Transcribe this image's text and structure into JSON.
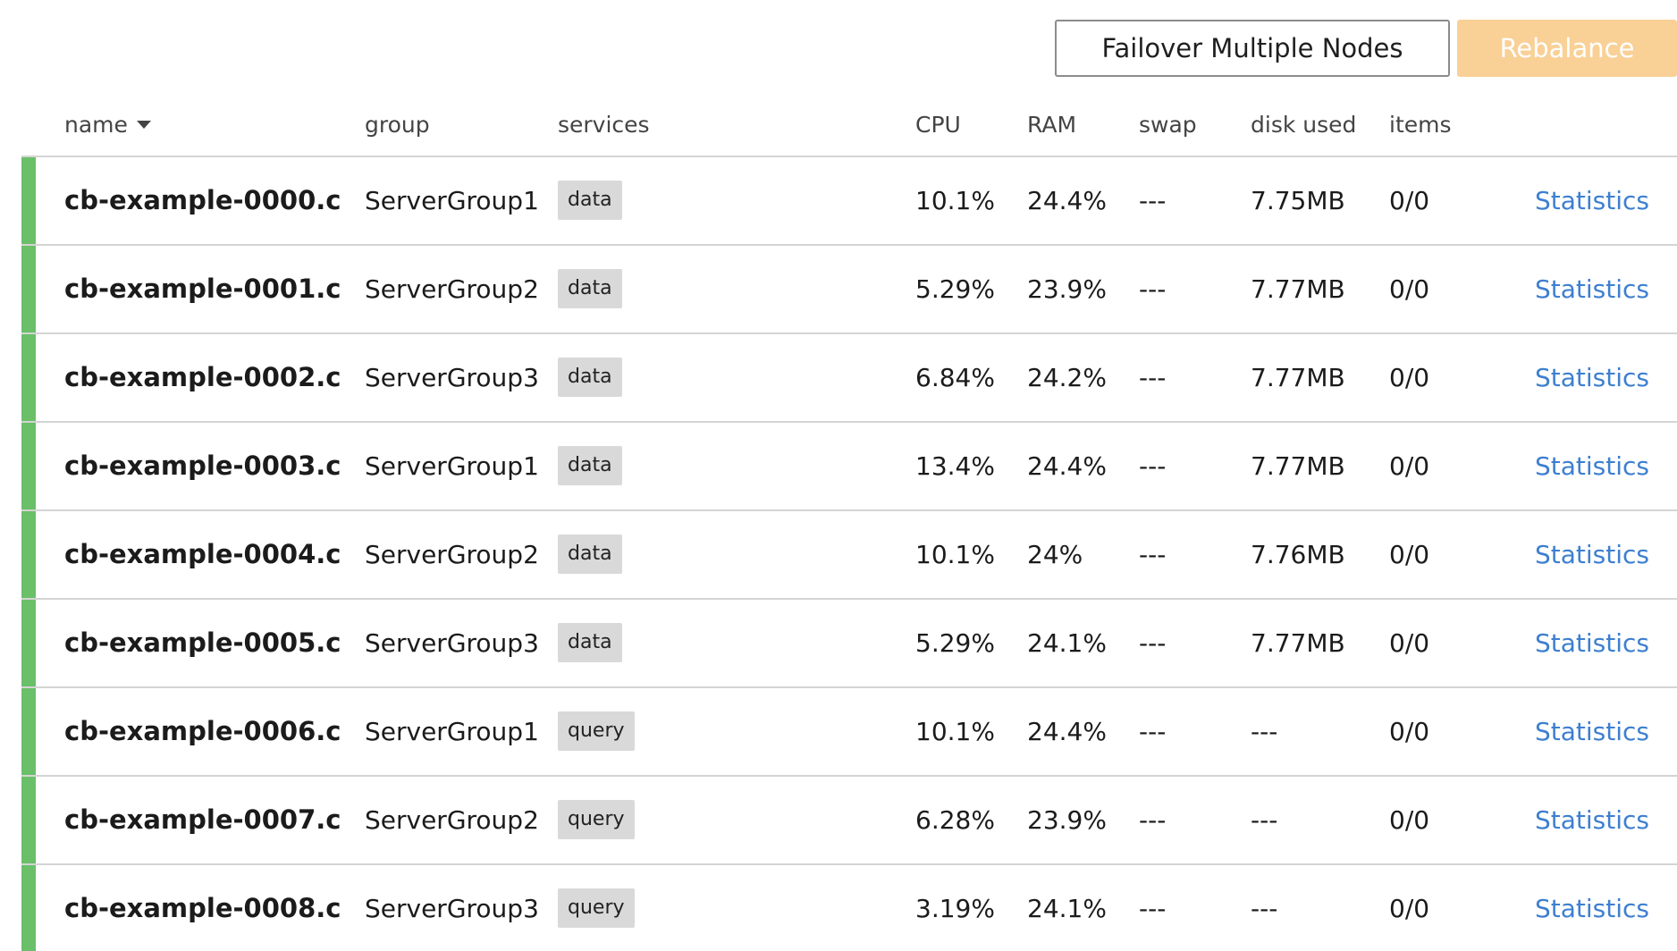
{
  "toolbar": {
    "failover_label": "Failover Multiple Nodes",
    "rebalance_label": "Rebalance"
  },
  "columns": {
    "name": "name",
    "group": "group",
    "services": "services",
    "cpu": "CPU",
    "ram": "RAM",
    "swap": "swap",
    "disk": "disk used",
    "items": "items"
  },
  "colors": {
    "status_healthy": "#6abf69",
    "link": "#3d7fd0",
    "rebalance_disabled": "#f9d096"
  },
  "rows": [
    {
      "name": "cb-example-0000.c...",
      "group": "ServerGroup1",
      "service": "data",
      "cpu": "10.1%",
      "ram": "24.4%",
      "swap": "---",
      "disk": "7.75MB",
      "items": "0/0",
      "link": "Statistics"
    },
    {
      "name": "cb-example-0001.c...",
      "group": "ServerGroup2",
      "service": "data",
      "cpu": "5.29%",
      "ram": "23.9%",
      "swap": "---",
      "disk": "7.77MB",
      "items": "0/0",
      "link": "Statistics"
    },
    {
      "name": "cb-example-0002.c...",
      "group": "ServerGroup3",
      "service": "data",
      "cpu": "6.84%",
      "ram": "24.2%",
      "swap": "---",
      "disk": "7.77MB",
      "items": "0/0",
      "link": "Statistics"
    },
    {
      "name": "cb-example-0003.c...",
      "group": "ServerGroup1",
      "service": "data",
      "cpu": "13.4%",
      "ram": "24.4%",
      "swap": "---",
      "disk": "7.77MB",
      "items": "0/0",
      "link": "Statistics"
    },
    {
      "name": "cb-example-0004.c...",
      "group": "ServerGroup2",
      "service": "data",
      "cpu": "10.1%",
      "ram": "24%",
      "swap": "---",
      "disk": "7.76MB",
      "items": "0/0",
      "link": "Statistics"
    },
    {
      "name": "cb-example-0005.c...",
      "group": "ServerGroup3",
      "service": "data",
      "cpu": "5.29%",
      "ram": "24.1%",
      "swap": "---",
      "disk": "7.77MB",
      "items": "0/0",
      "link": "Statistics"
    },
    {
      "name": "cb-example-0006.c...",
      "group": "ServerGroup1",
      "service": "query",
      "cpu": "10.1%",
      "ram": "24.4%",
      "swap": "---",
      "disk": "---",
      "items": "0/0",
      "link": "Statistics"
    },
    {
      "name": "cb-example-0007.c...",
      "group": "ServerGroup2",
      "service": "query",
      "cpu": "6.28%",
      "ram": "23.9%",
      "swap": "---",
      "disk": "---",
      "items": "0/0",
      "link": "Statistics"
    },
    {
      "name": "cb-example-0008.c...",
      "group": "ServerGroup3",
      "service": "query",
      "cpu": "3.19%",
      "ram": "24.1%",
      "swap": "---",
      "disk": "---",
      "items": "0/0",
      "link": "Statistics"
    }
  ]
}
